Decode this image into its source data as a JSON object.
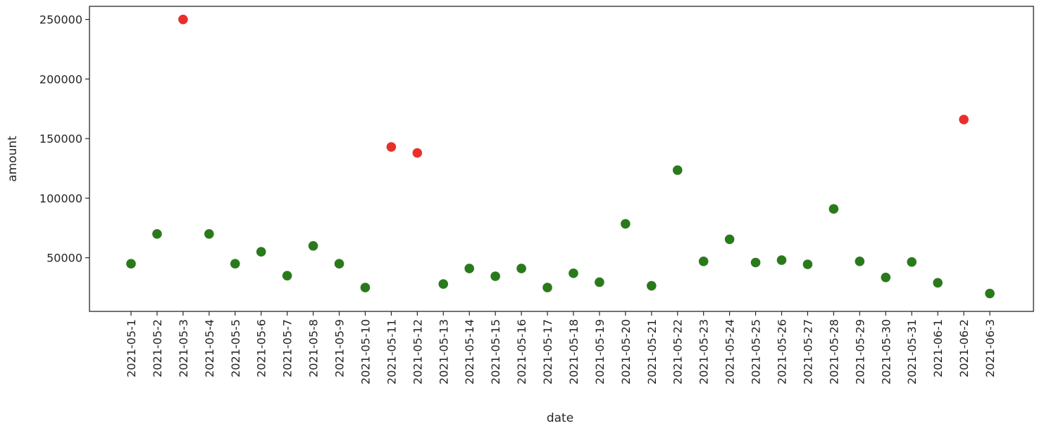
{
  "chart_data": {
    "type": "scatter",
    "title": "",
    "xlabel": "date",
    "ylabel": "amount",
    "categories": [
      "2021-05-1",
      "2021-05-2",
      "2021-05-3",
      "2021-05-4",
      "2021-05-5",
      "2021-05-6",
      "2021-05-7",
      "2021-05-8",
      "2021-05-9",
      "2021-05-10",
      "2021-05-11",
      "2021-05-12",
      "2021-05-13",
      "2021-05-14",
      "2021-05-15",
      "2021-05-16",
      "2021-05-17",
      "2021-05-18",
      "2021-05-19",
      "2021-05-20",
      "2021-05-21",
      "2021-05-22",
      "2021-05-23",
      "2021-05-24",
      "2021-05-25",
      "2021-05-26",
      "2021-05-27",
      "2021-05-28",
      "2021-05-29",
      "2021-05-30",
      "2021-05-31",
      "2021-06-1",
      "2021-06-2",
      "2021-06-3"
    ],
    "values": [
      45000,
      70000,
      250000,
      70000,
      45000,
      55000,
      35000,
      60000,
      45000,
      25000,
      143000,
      138000,
      28000,
      41000,
      34500,
      41000,
      25000,
      37000,
      29500,
      78500,
      26500,
      123500,
      47000,
      65500,
      46000,
      48000,
      44500,
      91000,
      47000,
      33500,
      46500,
      29000,
      166000,
      20000
    ],
    "colors": [
      "#2a7a1c",
      "#2a7a1c",
      "#e8302a",
      "#2a7a1c",
      "#2a7a1c",
      "#2a7a1c",
      "#2a7a1c",
      "#2a7a1c",
      "#2a7a1c",
      "#2a7a1c",
      "#e8302a",
      "#e8302a",
      "#2a7a1c",
      "#2a7a1c",
      "#2a7a1c",
      "#2a7a1c",
      "#2a7a1c",
      "#2a7a1c",
      "#2a7a1c",
      "#2a7a1c",
      "#2a7a1c",
      "#2a7a1c",
      "#2a7a1c",
      "#2a7a1c",
      "#2a7a1c",
      "#2a7a1c",
      "#2a7a1c",
      "#2a7a1c",
      "#2a7a1c",
      "#2a7a1c",
      "#2a7a1c",
      "#2a7a1c",
      "#e8302a",
      "#2a7a1c"
    ],
    "y_ticks": [
      50000,
      100000,
      150000,
      200000,
      250000
    ],
    "ylim": [
      5000,
      261000
    ],
    "grid": false,
    "legend": "none"
  }
}
